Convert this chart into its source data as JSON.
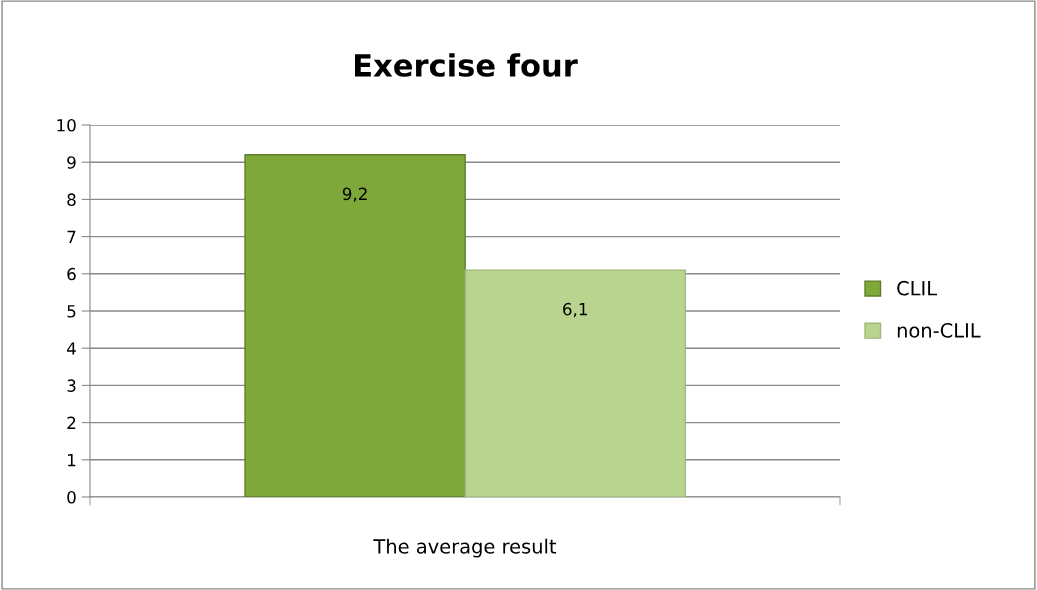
{
  "chart_data": {
    "type": "bar",
    "title": "Exercise four",
    "categories": [
      "The average result"
    ],
    "series": [
      {
        "name": "CLIL",
        "color": "#7ea83a",
        "values": [
          9.2
        ],
        "value_labels": [
          "9,2"
        ]
      },
      {
        "name": "non-CLIL",
        "color": "#b9d48f",
        "values": [
          6.1
        ],
        "value_labels": [
          "6,1"
        ]
      }
    ],
    "ylim": [
      0,
      10
    ],
    "yticks": [
      0,
      1,
      2,
      3,
      4,
      5,
      6,
      7,
      8,
      9,
      10
    ],
    "grid": "y",
    "legend": "right"
  }
}
